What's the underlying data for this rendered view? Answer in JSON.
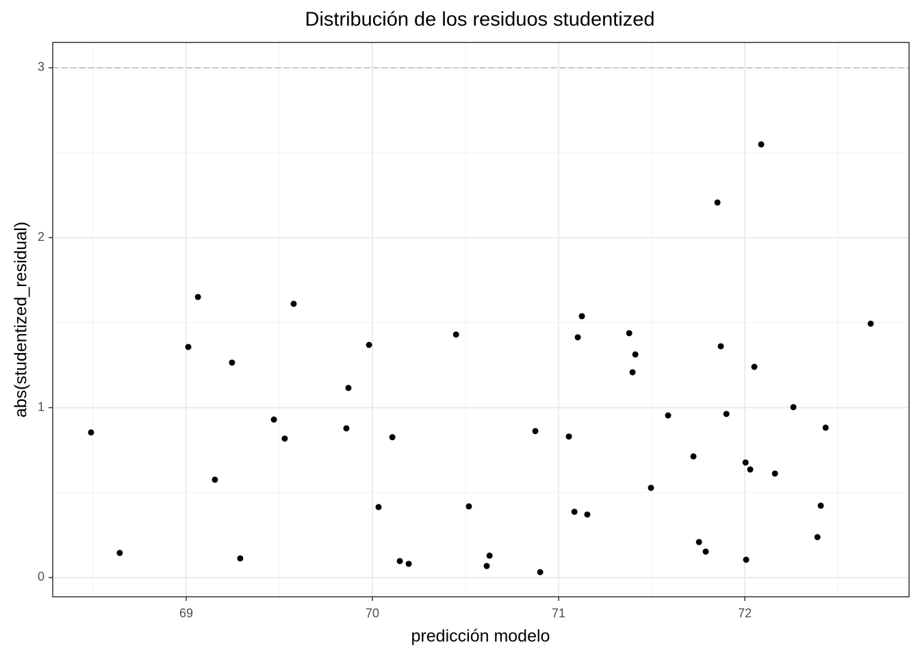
{
  "chart_data": {
    "type": "scatter",
    "title": "Distribución de los residuos studentized",
    "x_label": "predicción modelo",
    "y_label": "abs(studentized_residual)",
    "x": [
      68.489,
      68.643,
      69.011,
      69.063,
      69.154,
      69.246,
      69.29,
      69.471,
      69.529,
      69.577,
      69.86,
      69.871,
      69.982,
      70.033,
      70.107,
      70.147,
      70.195,
      70.449,
      70.518,
      70.614,
      70.629,
      70.875,
      70.901,
      71.055,
      71.085,
      71.103,
      71.125,
      71.154,
      71.379,
      71.397,
      71.412,
      71.496,
      71.588,
      71.724,
      71.754,
      71.79,
      71.853,
      71.871,
      71.901,
      72.004,
      72.007,
      72.029,
      72.051,
      72.088,
      72.162,
      72.261,
      72.39,
      72.408,
      72.434,
      72.676
    ],
    "values": [
      0.854,
      0.145,
      1.357,
      1.651,
      0.576,
      1.265,
      0.113,
      0.93,
      0.818,
      1.611,
      0.878,
      1.116,
      1.369,
      0.415,
      0.826,
      0.097,
      0.081,
      1.43,
      0.419,
      0.068,
      0.129,
      0.862,
      0.032,
      0.83,
      0.387,
      1.414,
      1.538,
      0.371,
      1.438,
      1.208,
      1.313,
      0.528,
      0.954,
      0.713,
      0.209,
      0.153,
      2.207,
      1.361,
      0.963,
      0.677,
      0.105,
      0.636,
      1.24,
      2.549,
      0.612,
      1.003,
      0.238,
      0.423,
      0.882,
      1.494
    ],
    "color": "#000000",
    "xlim": [
      68.283,
      72.882
    ],
    "ylim": [
      -0.113,
      3.149
    ],
    "xticks": [
      69,
      70,
      71,
      72
    ],
    "yticks": [
      0,
      1,
      2,
      3
    ],
    "grid": true,
    "minor_grid": true,
    "hline": 3
  }
}
